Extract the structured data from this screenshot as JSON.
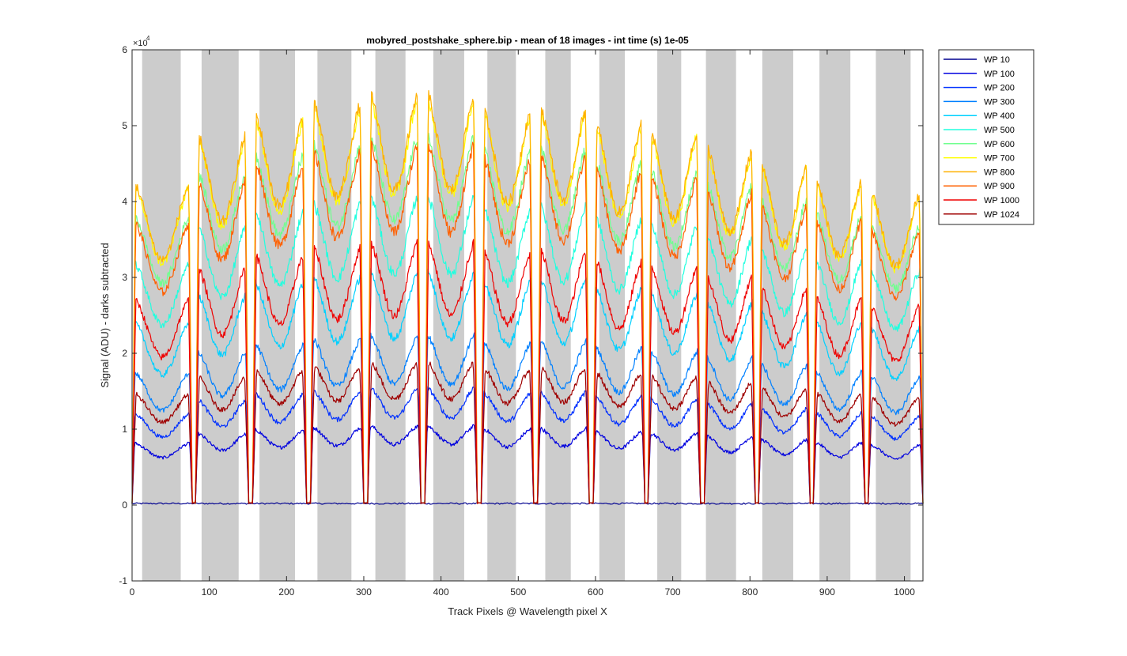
{
  "chart_data": {
    "type": "line",
    "title": "mobyred_postshake_sphere.bip - mean of 18 images - int time (s) 1e-05",
    "xlabel": "Track Pixels @ Wavelength pixel X",
    "ylabel": "Signal (ADU) - darks subtracted",
    "y_exponent_label": "×10",
    "y_exponent_power": "4",
    "xlim": [
      0,
      1024
    ],
    "ylim": [
      -1,
      6
    ],
    "x_ticks": [
      0,
      100,
      200,
      300,
      400,
      500,
      600,
      700,
      800,
      900,
      1000
    ],
    "x_tick_labels": [
      "0",
      "100",
      "200",
      "300",
      "400",
      "500",
      "600",
      "700",
      "800",
      "900",
      "1000"
    ],
    "y_ticks": [
      -1,
      0,
      1,
      2,
      3,
      4,
      5,
      6
    ],
    "y_tick_labels": [
      "-1",
      "0",
      "1",
      "2",
      "3",
      "4",
      "5",
      "6"
    ],
    "grid": false,
    "legend_position": "outside-top-right",
    "shaded_regions": [
      [
        13,
        63
      ],
      [
        90,
        138
      ],
      [
        165,
        211
      ],
      [
        240,
        284
      ],
      [
        315,
        354
      ],
      [
        390,
        430
      ],
      [
        460,
        497
      ],
      [
        535,
        568
      ],
      [
        605,
        638
      ],
      [
        680,
        711
      ],
      [
        743,
        782
      ],
      [
        816,
        856
      ],
      [
        890,
        930
      ],
      [
        963,
        1008
      ]
    ],
    "track_boundaries": [
      [
        0,
        78
      ],
      [
        82,
        151
      ],
      [
        156,
        226
      ],
      [
        231,
        300
      ],
      [
        305,
        374
      ],
      [
        379,
        447
      ],
      [
        452,
        520
      ],
      [
        525,
        592
      ],
      [
        597,
        664
      ],
      [
        668,
        736
      ],
      [
        741,
        807
      ],
      [
        811,
        878
      ],
      [
        882,
        949
      ],
      [
        953,
        1024
      ]
    ],
    "track_scale": [
      0.78,
      0.9,
      0.95,
      0.98,
      1.0,
      1.0,
      0.96,
      0.97,
      0.93,
      0.91,
      0.87,
      0.83,
      0.79,
      0.76
    ],
    "series": [
      {
        "name": "WP 10",
        "color": "#00008f",
        "peak": 0.02,
        "dip": 0.0,
        "flat": true
      },
      {
        "name": "WP 100",
        "color": "#0000df",
        "peak": 1.05,
        "dip": 0.8
      },
      {
        "name": "WP 200",
        "color": "#0030ff",
        "peak": 1.55,
        "dip": 1.15
      },
      {
        "name": "WP 300",
        "color": "#0080ff",
        "peak": 2.25,
        "dip": 1.6
      },
      {
        "name": "WP 400",
        "color": "#00d0ff",
        "peak": 3.1,
        "dip": 2.2
      },
      {
        "name": "WP 500",
        "color": "#20ffdf",
        "peak": 4.1,
        "dip": 3.05
      },
      {
        "name": "WP 600",
        "color": "#70ff8f",
        "peak": 4.9,
        "dip": 3.75
      },
      {
        "name": "WP 700",
        "color": "#ffff00",
        "peak": 5.4,
        "dip": 4.1
      },
      {
        "name": "WP 800",
        "color": "#ffb000",
        "peak": 5.45,
        "dip": 4.15
      },
      {
        "name": "WP 900",
        "color": "#ff6000",
        "peak": 4.8,
        "dip": 3.6
      },
      {
        "name": "WP 1000",
        "color": "#ef0000",
        "peak": 3.5,
        "dip": 2.5
      },
      {
        "name": "WP 1024",
        "color": "#9f0000",
        "peak": 1.9,
        "dip": 1.4
      }
    ]
  }
}
